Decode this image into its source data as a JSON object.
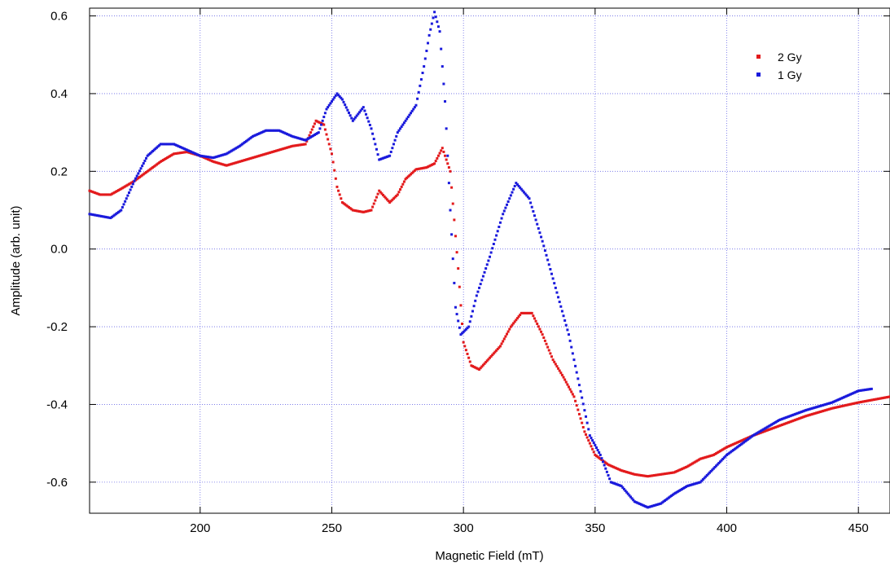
{
  "chart_data": {
    "type": "scatter",
    "xlabel": "Magnetic Field (mT)",
    "ylabel": "Amplitude (arb. unit)",
    "xlim": [
      158,
      462
    ],
    "ylim": [
      -0.68,
      0.62
    ],
    "x_ticks": [
      200,
      250,
      300,
      350,
      400,
      450
    ],
    "y_ticks": [
      -0.6,
      -0.4,
      -0.2,
      0.0,
      0.2,
      0.4,
      0.6
    ],
    "x_tick_labels": [
      "200",
      "250",
      "300",
      "350",
      "400",
      "450"
    ],
    "y_tick_labels": [
      "-0.6",
      "-0.4",
      "-0.2",
      "0.0",
      "0.2",
      "0.4",
      "0.6"
    ],
    "grid": true,
    "legend_position": "top-right",
    "series": [
      {
        "name": "2 Gy",
        "color": "#e31a1c",
        "x": [
          158,
          162,
          166,
          170,
          175,
          180,
          185,
          190,
          195,
          200,
          205,
          210,
          215,
          220,
          225,
          230,
          235,
          240,
          244,
          247,
          250,
          252,
          254,
          258,
          262,
          265,
          268,
          272,
          275,
          278,
          282,
          286,
          289,
          292,
          295,
          298,
          300,
          303,
          306,
          310,
          314,
          318,
          322,
          326,
          330,
          334,
          338,
          342,
          346,
          350,
          355,
          360,
          365,
          370,
          375,
          380,
          385,
          390,
          395,
          400,
          405,
          410,
          420,
          430,
          440,
          450,
          462
        ],
        "y": [
          0.15,
          0.14,
          0.14,
          0.155,
          0.175,
          0.2,
          0.225,
          0.245,
          0.25,
          0.24,
          0.225,
          0.215,
          0.225,
          0.235,
          0.245,
          0.255,
          0.265,
          0.27,
          0.33,
          0.32,
          0.245,
          0.16,
          0.12,
          0.1,
          0.095,
          0.1,
          0.15,
          0.12,
          0.14,
          0.18,
          0.205,
          0.21,
          0.22,
          0.26,
          0.2,
          -0.05,
          -0.24,
          -0.3,
          -0.31,
          -0.28,
          -0.25,
          -0.2,
          -0.165,
          -0.165,
          -0.22,
          -0.285,
          -0.33,
          -0.38,
          -0.47,
          -0.53,
          -0.555,
          -0.57,
          -0.58,
          -0.585,
          -0.58,
          -0.575,
          -0.56,
          -0.54,
          -0.53,
          -0.51,
          -0.495,
          -0.48,
          -0.455,
          -0.43,
          -0.41,
          -0.395,
          -0.38
        ]
      },
      {
        "name": "1 Gy",
        "color": "#1a1adc",
        "x": [
          158,
          162,
          166,
          170,
          175,
          180,
          185,
          190,
          195,
          200,
          205,
          210,
          215,
          220,
          225,
          230,
          235,
          240,
          245,
          248,
          252,
          254,
          258,
          262,
          265,
          268,
          272,
          275,
          278,
          282,
          285,
          287,
          289,
          291,
          293,
          295,
          297,
          299,
          302,
          305,
          310,
          315,
          320,
          325,
          330,
          335,
          340,
          344,
          348,
          352,
          356,
          360,
          365,
          370,
          375,
          380,
          385,
          390,
          395,
          400,
          410,
          420,
          430,
          440,
          450,
          455
        ],
        "y": [
          0.09,
          0.085,
          0.08,
          0.1,
          0.175,
          0.24,
          0.27,
          0.27,
          0.255,
          0.24,
          0.235,
          0.245,
          0.265,
          0.29,
          0.305,
          0.305,
          0.29,
          0.28,
          0.3,
          0.36,
          0.4,
          0.385,
          0.33,
          0.365,
          0.31,
          0.23,
          0.24,
          0.3,
          0.33,
          0.37,
          0.47,
          0.55,
          0.61,
          0.56,
          0.38,
          0.1,
          -0.15,
          -0.22,
          -0.2,
          -0.12,
          -0.02,
          0.09,
          0.17,
          0.13,
          0.02,
          -0.1,
          -0.22,
          -0.35,
          -0.48,
          -0.53,
          -0.6,
          -0.61,
          -0.65,
          -0.665,
          -0.655,
          -0.63,
          -0.61,
          -0.6,
          -0.565,
          -0.53,
          -0.48,
          -0.44,
          -0.415,
          -0.395,
          -0.365,
          -0.36
        ]
      }
    ]
  }
}
